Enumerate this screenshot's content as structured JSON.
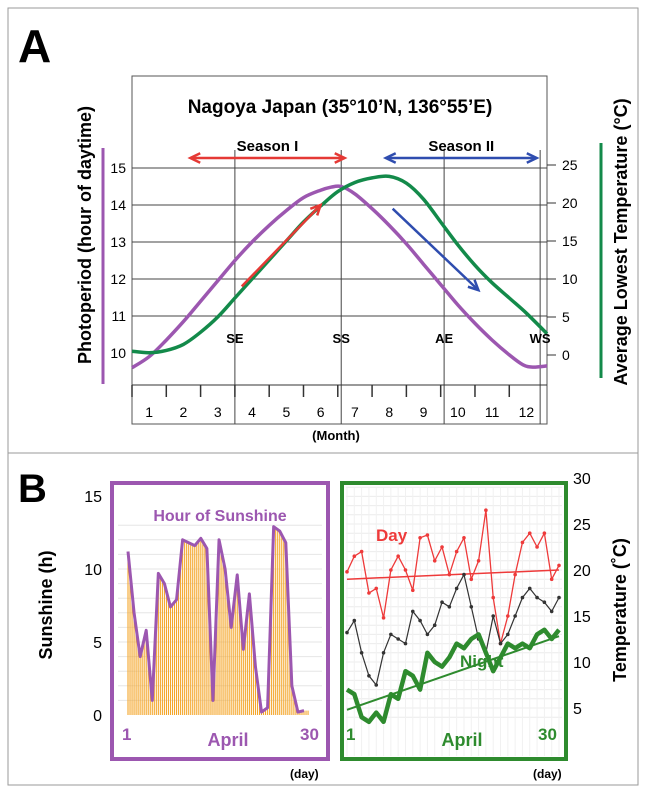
{
  "panels": [
    {
      "letter": "A"
    },
    {
      "letter": "B"
    }
  ],
  "colors": {
    "photoperiod": "#9C57B0",
    "temperature": "#138A4A",
    "season_one": "#E53935",
    "season_two": "#2F4DAF",
    "day": "#EE3A3A",
    "mean": "#333333",
    "night": "#2E8B2E",
    "bar": "#F4A62A"
  },
  "chart_data": [
    {
      "panel": "A",
      "type": "line",
      "title": "Nagoya Japan (35°10’N, 136°55’E)",
      "xlabel": "(Month)",
      "ylabel_left": "Photoperiod (hour of daytime)",
      "ylabel_right": "Average Lowest Temperature (°C)",
      "x_ticks": [
        "1",
        "2",
        "3",
        "4",
        "5",
        "6",
        "7",
        "8",
        "9",
        "10",
        "11",
        "12"
      ],
      "xlim": [
        0.5,
        12.6
      ],
      "y_left_ticks": [
        "10",
        "11",
        "12",
        "13",
        "14",
        "15"
      ],
      "y_left_lim": [
        10,
        15
      ],
      "y_right_ticks": [
        "0",
        "5",
        "10",
        "15",
        "20",
        "25"
      ],
      "y_right_lim": [
        0,
        25
      ],
      "series": [
        {
          "name": "Photoperiod",
          "axis": "left",
          "x": [
            0.5,
            1.0,
            1.5,
            2.0,
            2.5,
            3.0,
            3.5,
            4.0,
            4.5,
            5.0,
            5.5,
            6.0,
            6.3,
            6.6,
            7.0,
            7.5,
            8.0,
            8.5,
            9.0,
            9.5,
            10.0,
            10.5,
            11.0,
            11.5,
            11.9,
            12.2,
            12.6
          ],
          "y": [
            9.6,
            9.9,
            10.35,
            10.85,
            11.4,
            11.95,
            12.5,
            13.0,
            13.45,
            13.85,
            14.2,
            14.4,
            14.48,
            14.5,
            14.3,
            13.9,
            13.45,
            12.95,
            12.4,
            11.85,
            11.3,
            10.8,
            10.35,
            9.95,
            9.68,
            9.62,
            9.65
          ]
        },
        {
          "name": "Average Lowest Temperature",
          "axis": "right",
          "x": [
            0.5,
            1.0,
            1.5,
            2.0,
            2.5,
            3.0,
            3.5,
            4.0,
            4.5,
            5.0,
            5.5,
            6.0,
            6.5,
            7.0,
            7.5,
            8.0,
            8.5,
            9.0,
            9.5,
            10.0,
            10.5,
            11.0,
            11.5,
            12.0,
            12.6
          ],
          "y": [
            0.5,
            0.3,
            0.6,
            1.4,
            3.0,
            5.0,
            7.5,
            10.0,
            12.5,
            15.0,
            17.5,
            19.6,
            21.5,
            22.7,
            23.3,
            23.5,
            22.6,
            20.5,
            17.5,
            14.5,
            11.8,
            9.5,
            7.5,
            5.5,
            2.8
          ]
        }
      ],
      "seasons": [
        {
          "label": "Season I",
          "from": 2.2,
          "to": 6.7
        },
        {
          "label": "Season II",
          "from": 7.9,
          "to": 12.3
        }
      ],
      "markers": [
        {
          "label": "SE",
          "x": 3.5
        },
        {
          "label": "SS",
          "x": 6.6
        },
        {
          "label": "AE",
          "x": 9.6
        },
        {
          "label": "WS",
          "x": 12.4
        }
      ],
      "trend_arrows": [
        {
          "from": [
            3.7,
            11.8
          ],
          "to": [
            6.0,
            14.0
          ]
        },
        {
          "from": [
            8.1,
            13.9
          ],
          "to": [
            10.6,
            11.7
          ]
        }
      ],
      "grid": true
    },
    {
      "panel": "B-left",
      "type": "bar",
      "title": "Hour of Sunshine",
      "xlabel": "April",
      "xunit": "(day)",
      "ylabel": "Sunshine (h)",
      "x_start_label": "1",
      "x_end_label": "30",
      "y_ticks": [
        "0",
        "5",
        "10",
        "15"
      ],
      "ylim": [
        0,
        15
      ],
      "days": [
        1,
        2,
        3,
        4,
        5,
        6,
        7,
        8,
        9,
        10,
        11,
        12,
        13,
        14,
        15,
        16,
        17,
        18,
        19,
        20,
        21,
        22,
        23,
        24,
        25,
        26,
        27,
        28,
        29,
        30
      ],
      "values": [
        11.2,
        7.0,
        4.0,
        5.8,
        1.0,
        9.7,
        9.0,
        7.4,
        7.9,
        12.0,
        11.8,
        11.6,
        12.1,
        11.4,
        1.0,
        12.0,
        10.0,
        6.0,
        9.6,
        4.5,
        8.3,
        3.3,
        0.2,
        0.5,
        12.9,
        12.6,
        11.8,
        2.0,
        0.2,
        0.3
      ],
      "grid": true
    },
    {
      "panel": "B-right",
      "type": "line",
      "xlabel": "April",
      "xunit": "(day)",
      "ylabel": "Temperature (˚C)",
      "x_start_label": "1",
      "x_end_label": "30",
      "y_ticks": [
        "5",
        "10",
        "15",
        "20",
        "25",
        "30"
      ],
      "ylim": [
        3,
        30
      ],
      "x": [
        1,
        2,
        3,
        4,
        5,
        6,
        7,
        8,
        9,
        10,
        11,
        12,
        13,
        14,
        15,
        16,
        17,
        18,
        19,
        20,
        21,
        22,
        23,
        24,
        25,
        26,
        27,
        28,
        29,
        30
      ],
      "series": [
        {
          "name": "Day",
          "values": [
            19.8,
            21.5,
            22.0,
            17.5,
            18.0,
            14.8,
            20.0,
            21.5,
            20.0,
            17.8,
            23.5,
            23.8,
            21.0,
            22.5,
            19.5,
            22.0,
            23.5,
            19.0,
            21.0,
            26.5,
            17.0,
            12.0,
            15.0,
            19.5,
            23.0,
            24.0,
            22.5,
            24.0,
            19.0,
            20.5
          ],
          "trend": [
            19.0,
            20.0
          ]
        },
        {
          "values": [
            13.2,
            14.5,
            11.0,
            8.5,
            7.5,
            11.0,
            13.0,
            12.5,
            12.0,
            15.5,
            14.5,
            13.0,
            14.0,
            16.5,
            16.0,
            18.0,
            19.5,
            16.0,
            12.5,
            11.0,
            15.0,
            12.0,
            13.0,
            15.0,
            17.0,
            18.0,
            17.0,
            16.5,
            15.5,
            17.0
          ]
        },
        {
          "name": "Night",
          "values": [
            7.0,
            6.5,
            4.0,
            3.5,
            4.5,
            3.5,
            6.5,
            6.0,
            9.0,
            8.5,
            7.0,
            11.0,
            10.0,
            9.5,
            10.5,
            12.0,
            11.5,
            12.5,
            13.0,
            11.0,
            9.0,
            10.5,
            12.0,
            11.5,
            12.0,
            11.5,
            13.0,
            13.5,
            12.5,
            13.5
          ],
          "trend": [
            4.8,
            12.8
          ]
        }
      ],
      "grid": true
    }
  ]
}
